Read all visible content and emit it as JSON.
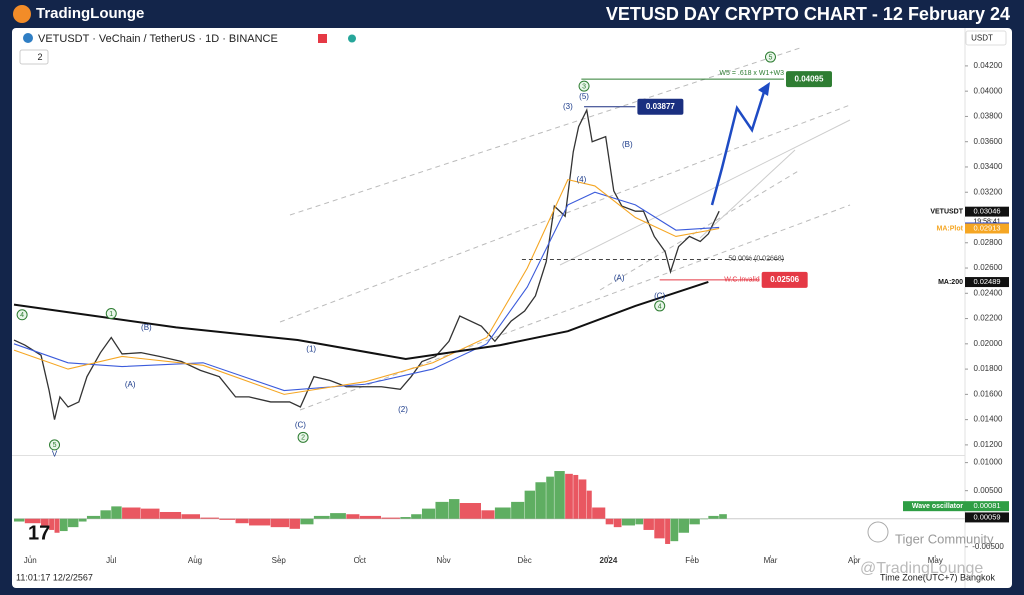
{
  "header": {
    "logo": "TradingLounge",
    "title": "VETUSD DAY CRYPTO CHART - 12 February 24"
  },
  "toolbar": {
    "symbol": "VETUSDT · VeChain / TetherUS · 1D · BINANCE",
    "indicators_count": 2,
    "currency": "USDT"
  },
  "footer": {
    "time": "11:01:17 12/2/2567",
    "timezone": "Time Zone(UTC+7) Bangkok",
    "watermark": "Tiger Community",
    "handle": "@TradingLounge"
  },
  "chart_data": [
    {
      "type": "line",
      "x": [
        0,
        4,
        10,
        13,
        15,
        17,
        20,
        24,
        27,
        32,
        36,
        40,
        47,
        54,
        62,
        69,
        76,
        82,
        87,
        95,
        102,
        106,
        111,
        117,
        123,
        128,
        136,
        143,
        147,
        151,
        156,
        161,
        165,
        173,
        178,
        184,
        189,
        193,
        197,
        200,
        204,
        207,
        209,
        212,
        214,
        219,
        222,
        225,
        230,
        233,
        237,
        241,
        243,
        246,
        250,
        254,
        257,
        261
      ],
      "xlim": [
        0,
        352
      ],
      "xticks": [
        {
          "value": 6,
          "label": "Jun"
        },
        {
          "value": 36,
          "label": "Jul"
        },
        {
          "value": 67,
          "label": "Aug"
        },
        {
          "value": 98,
          "label": "Sep"
        },
        {
          "value": 128,
          "label": "Oct"
        },
        {
          "value": 159,
          "label": "Nov"
        },
        {
          "value": 189,
          "label": "Dec"
        },
        {
          "value": 220,
          "label": "2024"
        },
        {
          "value": 251,
          "label": "Feb"
        },
        {
          "value": 280,
          "label": "Mar"
        },
        {
          "value": 311,
          "label": "Apr"
        },
        {
          "value": 341,
          "label": "May"
        }
      ],
      "ylim": [
        0.0112,
        0.045
      ],
      "yticks": [
        {
          "value": 0.042,
          "label": "0.04200"
        },
        {
          "value": 0.04,
          "label": "0.04000"
        },
        {
          "value": 0.038,
          "label": "0.03800"
        },
        {
          "value": 0.036,
          "label": "0.03600"
        },
        {
          "value": 0.034,
          "label": "0.03400"
        },
        {
          "value": 0.032,
          "label": "0.03200"
        },
        {
          "value": 0.03,
          "label": "0.03000"
        },
        {
          "value": 0.028,
          "label": "0.02800"
        },
        {
          "value": 0.026,
          "label": "0.02600"
        },
        {
          "value": 0.024,
          "label": "0.02400"
        },
        {
          "value": 0.022,
          "label": "0.02200"
        },
        {
          "value": 0.02,
          "label": "0.02000"
        },
        {
          "value": 0.018,
          "label": "0.01800"
        },
        {
          "value": 0.016,
          "label": "0.01600"
        },
        {
          "value": 0.014,
          "label": "0.01400"
        },
        {
          "value": 0.012,
          "label": "0.01200"
        }
      ],
      "series": [
        {
          "name": "VETUSDT",
          "color": "#333333",
          "values": [
            0.0203,
            0.0199,
            0.0191,
            0.0163,
            0.014,
            0.0158,
            0.015,
            0.0154,
            0.0174,
            0.0193,
            0.0205,
            0.0192,
            0.0193,
            0.019,
            0.0186,
            0.0179,
            0.0174,
            0.0158,
            0.0158,
            0.0154,
            0.0154,
            0.015,
            0.0174,
            0.0171,
            0.0166,
            0.0166,
            0.0166,
            0.0164,
            0.0174,
            0.0186,
            0.019,
            0.0202,
            0.0222,
            0.0214,
            0.0202,
            0.0218,
            0.0226,
            0.0238,
            0.0265,
            0.0309,
            0.0301,
            0.0352,
            0.0372,
            0.0385,
            0.036,
            0.0364,
            0.0321,
            0.0309,
            0.0305,
            0.0305,
            0.0285,
            0.0273,
            0.0257,
            0.0277,
            0.0285,
            0.0281,
            0.0287,
            0.0305
          ]
        },
        {
          "name": "MA:35",
          "color": "#3b5bdb",
          "x": [
            0,
            20,
            40,
            70,
            100,
            130,
            155,
            175,
            190,
            205,
            215,
            230,
            245,
            261
          ],
          "values": [
            0.02,
            0.0185,
            0.0182,
            0.0185,
            0.0163,
            0.0168,
            0.018,
            0.02,
            0.0245,
            0.031,
            0.032,
            0.031,
            0.029,
            0.02921
          ]
        },
        {
          "name": "MA:Plot",
          "color": "#f5a623",
          "x": [
            0,
            20,
            40,
            70,
            100,
            130,
            155,
            175,
            190,
            205,
            215,
            230,
            245,
            261
          ],
          "values": [
            0.0195,
            0.018,
            0.019,
            0.0183,
            0.016,
            0.017,
            0.0185,
            0.0205,
            0.026,
            0.033,
            0.0325,
            0.03,
            0.0285,
            0.02913
          ]
        },
        {
          "name": "MA:200",
          "color": "#111111",
          "x": [
            0,
            30,
            60,
            105,
            145,
            180,
            205,
            230,
            257
          ],
          "values": [
            0.0231,
            0.0222,
            0.0213,
            0.0203,
            0.0188,
            0.0199,
            0.021,
            0.023,
            0.0249
          ]
        }
      ],
      "price_labels": [
        {
          "name": "VETUSDT",
          "value": 0.03046,
          "time": "19:58:41",
          "color": "#111111"
        },
        {
          "name": "MA:35",
          "value": 0.02921,
          "color": "#2f4fd8"
        },
        {
          "name": "MA:Plot",
          "value": 0.02913,
          "color": "#f5a623"
        },
        {
          "name": "MA:200",
          "value": 0.02489,
          "color": "#111111"
        }
      ],
      "levels": [
        {
          "text": "W5 = .618 x W1+W3",
          "value": 0.04095,
          "color": "#2e7d32",
          "from": 210,
          "to": 285
        },
        {
          "value": 0.03877,
          "color": "#1a2f80",
          "from": 211,
          "to": 230
        },
        {
          "text": "W.C.Invalid",
          "value": 0.02506,
          "color": "#e53945",
          "from": 239,
          "to": 276
        },
        {
          "text": "50.00% (0.02668)",
          "value": 0.02668,
          "color": "#444444",
          "from": 188,
          "to": 285,
          "dashed": true
        }
      ],
      "waves": [
        {
          "text": "4",
          "x": 3,
          "y": 0.0223,
          "circled": true
        },
        {
          "text": "5",
          "x": 15,
          "y": 0.012,
          "circled": true
        },
        {
          "text": "V",
          "x": 15,
          "y": 0.0113
        },
        {
          "text": "1",
          "x": 36,
          "y": 0.0224,
          "circled": true
        },
        {
          "text": "(B)",
          "x": 49,
          "y": 0.0213
        },
        {
          "text": "(A)",
          "x": 43,
          "y": 0.0168
        },
        {
          "text": "(C)",
          "x": 106,
          "y": 0.0136
        },
        {
          "text": "2",
          "x": 107,
          "y": 0.0126,
          "circled": true
        },
        {
          "text": "(1)",
          "x": 110,
          "y": 0.0196
        },
        {
          "text": "(2)",
          "x": 144,
          "y": 0.0148
        },
        {
          "text": "3",
          "x": 211,
          "y": 0.0404,
          "circled": true
        },
        {
          "text": "(5)",
          "x": 211,
          "y": 0.0396
        },
        {
          "text": "(3)",
          "x": 205,
          "y": 0.0388
        },
        {
          "text": "(4)",
          "x": 210,
          "y": 0.033
        },
        {
          "text": "(B)",
          "x": 227,
          "y": 0.0358
        },
        {
          "text": "(A)",
          "x": 224,
          "y": 0.0252
        },
        {
          "text": "(C)",
          "x": 239,
          "y": 0.0238
        },
        {
          "text": "4",
          "x": 239,
          "y": 0.023,
          "circled": true
        },
        {
          "text": "5",
          "x": 280,
          "y": 0.0427,
          "circled": true
        }
      ]
    },
    {
      "type": "bar",
      "x": [
        0,
        4,
        10,
        13,
        15,
        17,
        20,
        24,
        27,
        32,
        36,
        40,
        47,
        54,
        62,
        69,
        76,
        82,
        87,
        95,
        102,
        106,
        111,
        117,
        123,
        128,
        136,
        143,
        147,
        151,
        156,
        161,
        165,
        173,
        178,
        184,
        189,
        193,
        197,
        200,
        204,
        207,
        209,
        212,
        214,
        219,
        222,
        225,
        230,
        233,
        237,
        241,
        243,
        246,
        250,
        254,
        257,
        261
      ],
      "xlim": [
        0,
        352
      ],
      "values": [
        -0.0005,
        -0.0008,
        -0.0012,
        -0.002,
        -0.0025,
        -0.0022,
        -0.0015,
        -0.0005,
        0.0005,
        0.0015,
        0.0022,
        0.002,
        0.0018,
        0.0012,
        0.0008,
        0.0002,
        -0.0002,
        -0.0008,
        -0.0012,
        -0.0015,
        -0.0018,
        -0.001,
        0.0005,
        0.001,
        0.0008,
        0.0005,
        0.0002,
        0.0003,
        0.0008,
        0.0018,
        0.003,
        0.0035,
        0.0028,
        0.0015,
        0.002,
        0.003,
        0.005,
        0.0065,
        0.0075,
        0.0085,
        0.008,
        0.0078,
        0.007,
        0.005,
        0.002,
        -0.001,
        -0.0015,
        -0.0012,
        -0.001,
        -0.002,
        -0.0035,
        -0.0045,
        -0.004,
        -0.0025,
        -0.001,
        0,
        0.0005,
        0.00081
      ],
      "up_color": "#43a047",
      "down_color": "#e53945",
      "ylim": [
        -0.007,
        0.011
      ],
      "yticks": [
        {
          "value": 0.01,
          "label": "0.01000"
        },
        {
          "value": 0.005,
          "label": "0.00500"
        },
        {
          "value": -0.005,
          "label": "-0.00500"
        }
      ],
      "price_labels": [
        {
          "name": "Wave oscillator",
          "value": 0.00081,
          "color": "#2e9e44"
        },
        {
          "value": 0.00059,
          "color": "#111111"
        }
      ]
    }
  ]
}
